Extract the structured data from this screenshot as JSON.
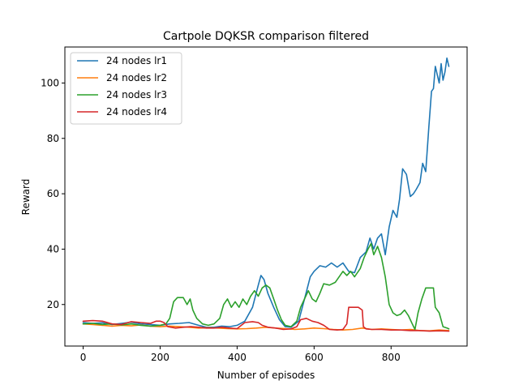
{
  "chart_data": {
    "type": "line",
    "title": "Cartpole DQKSR comparison filtered",
    "xlabel": "Number of episodes",
    "ylabel": "Reward",
    "xlim": [
      -47.5,
      997.5
    ],
    "ylim": [
      5,
      113
    ],
    "xticks": [
      0,
      200,
      400,
      600,
      800
    ],
    "yticks": [
      20,
      40,
      60,
      80,
      100
    ],
    "grid": false,
    "legend_position": "top-left",
    "series": [
      {
        "name": "24 nodes lr1",
        "color": "#1f77b4",
        "points": [
          [
            0,
            13.5
          ],
          [
            25,
            13.2
          ],
          [
            50,
            13.4
          ],
          [
            75,
            12.8
          ],
          [
            100,
            13.2
          ],
          [
            125,
            13.6
          ],
          [
            150,
            13.0
          ],
          [
            175,
            12.8
          ],
          [
            200,
            12.5
          ],
          [
            225,
            13.0
          ],
          [
            250,
            13.2
          ],
          [
            275,
            13.5
          ],
          [
            300,
            12.5
          ],
          [
            320,
            11.8
          ],
          [
            340,
            11.8
          ],
          [
            360,
            12.2
          ],
          [
            380,
            12.0
          ],
          [
            400,
            12.5
          ],
          [
            420,
            14.0
          ],
          [
            440,
            19.0
          ],
          [
            455,
            27.0
          ],
          [
            462,
            30.5
          ],
          [
            470,
            29.0
          ],
          [
            480,
            24.0
          ],
          [
            495,
            19.0
          ],
          [
            510,
            14.5
          ],
          [
            525,
            12.0
          ],
          [
            540,
            11.8
          ],
          [
            560,
            14.0
          ],
          [
            575,
            22.0
          ],
          [
            590,
            30.0
          ],
          [
            600,
            32.0
          ],
          [
            615,
            34.0
          ],
          [
            630,
            33.5
          ],
          [
            645,
            35.0
          ],
          [
            660,
            33.5
          ],
          [
            675,
            35.0
          ],
          [
            690,
            32.0
          ],
          [
            705,
            31.5
          ],
          [
            720,
            37.0
          ],
          [
            735,
            39.0
          ],
          [
            745,
            44.0
          ],
          [
            755,
            40.0
          ],
          [
            765,
            44.0
          ],
          [
            775,
            45.5
          ],
          [
            785,
            38.0
          ],
          [
            795,
            48.0
          ],
          [
            805,
            54.0
          ],
          [
            815,
            51.5
          ],
          [
            822,
            58.0
          ],
          [
            830,
            69.0
          ],
          [
            840,
            67.0
          ],
          [
            850,
            59.0
          ],
          [
            858,
            60.0
          ],
          [
            865,
            61.5
          ],
          [
            875,
            64.0
          ],
          [
            882,
            71.0
          ],
          [
            890,
            68.0
          ],
          [
            898,
            84.0
          ],
          [
            905,
            97.0
          ],
          [
            910,
            98.0
          ],
          [
            915,
            106.0
          ],
          [
            920,
            103.0
          ],
          [
            925,
            100.0
          ],
          [
            930,
            107.0
          ],
          [
            935,
            101.0
          ],
          [
            940,
            104.0
          ],
          [
            945,
            109.0
          ],
          [
            950,
            106.0
          ]
        ]
      },
      {
        "name": "24 nodes lr2",
        "color": "#ff7f0e",
        "points": [
          [
            0,
            13.0
          ],
          [
            25,
            12.8
          ],
          [
            50,
            12.5
          ],
          [
            75,
            12.2
          ],
          [
            100,
            12.5
          ],
          [
            125,
            12.3
          ],
          [
            150,
            12.6
          ],
          [
            175,
            12.2
          ],
          [
            200,
            12.0
          ],
          [
            225,
            12.2
          ],
          [
            250,
            12.0
          ],
          [
            275,
            11.8
          ],
          [
            300,
            11.5
          ],
          [
            325,
            11.6
          ],
          [
            350,
            11.5
          ],
          [
            375,
            11.3
          ],
          [
            400,
            11.2
          ],
          [
            425,
            11.3
          ],
          [
            450,
            11.5
          ],
          [
            475,
            11.8
          ],
          [
            500,
            11.5
          ],
          [
            525,
            11.3
          ],
          [
            550,
            11.0
          ],
          [
            575,
            11.2
          ],
          [
            600,
            11.5
          ],
          [
            625,
            11.3
          ],
          [
            650,
            11.0
          ],
          [
            675,
            10.8
          ],
          [
            700,
            11.0
          ],
          [
            725,
            11.5
          ],
          [
            750,
            11.0
          ],
          [
            775,
            11.2
          ],
          [
            800,
            11.0
          ],
          [
            825,
            10.8
          ],
          [
            850,
            11.0
          ],
          [
            875,
            10.6
          ],
          [
            900,
            10.5
          ],
          [
            925,
            10.8
          ],
          [
            950,
            10.6
          ]
        ]
      },
      {
        "name": "24 nodes lr3",
        "color": "#2ca02c",
        "points": [
          [
            0,
            13.0
          ],
          [
            25,
            13.2
          ],
          [
            50,
            12.8
          ],
          [
            75,
            13.0
          ],
          [
            100,
            12.6
          ],
          [
            125,
            13.0
          ],
          [
            150,
            12.5
          ],
          [
            175,
            12.2
          ],
          [
            200,
            12.5
          ],
          [
            215,
            13.0
          ],
          [
            225,
            15.0
          ],
          [
            235,
            21.0
          ],
          [
            245,
            22.5
          ],
          [
            260,
            22.5
          ],
          [
            270,
            20.0
          ],
          [
            278,
            22.0
          ],
          [
            285,
            18.0
          ],
          [
            295,
            15.0
          ],
          [
            310,
            13.0
          ],
          [
            325,
            12.5
          ],
          [
            340,
            13.0
          ],
          [
            355,
            15.0
          ],
          [
            365,
            20.0
          ],
          [
            375,
            22.0
          ],
          [
            385,
            19.0
          ],
          [
            395,
            21.0
          ],
          [
            405,
            19.0
          ],
          [
            415,
            22.0
          ],
          [
            425,
            20.0
          ],
          [
            435,
            23.0
          ],
          [
            445,
            25.0
          ],
          [
            455,
            23.0
          ],
          [
            465,
            26.0
          ],
          [
            475,
            27.0
          ],
          [
            485,
            26.0
          ],
          [
            495,
            22.0
          ],
          [
            505,
            18.0
          ],
          [
            515,
            14.5
          ],
          [
            525,
            12.5
          ],
          [
            540,
            12.0
          ],
          [
            555,
            14.0
          ],
          [
            565,
            19.0
          ],
          [
            575,
            22.0
          ],
          [
            585,
            25.0
          ],
          [
            595,
            22.0
          ],
          [
            605,
            21.0
          ],
          [
            615,
            24.0
          ],
          [
            625,
            27.5
          ],
          [
            640,
            27.0
          ],
          [
            655,
            28.0
          ],
          [
            665,
            30.0
          ],
          [
            675,
            32.0
          ],
          [
            685,
            30.5
          ],
          [
            695,
            32.0
          ],
          [
            705,
            30.0
          ],
          [
            720,
            33.0
          ],
          [
            730,
            37.0
          ],
          [
            740,
            40.0
          ],
          [
            748,
            42.0
          ],
          [
            755,
            38.0
          ],
          [
            765,
            41.0
          ],
          [
            775,
            37.0
          ],
          [
            785,
            30.0
          ],
          [
            795,
            20.0
          ],
          [
            805,
            17.0
          ],
          [
            815,
            16.0
          ],
          [
            825,
            16.5
          ],
          [
            835,
            18.0
          ],
          [
            845,
            16.0
          ],
          [
            855,
            13.0
          ],
          [
            862,
            11.0
          ],
          [
            870,
            17.0
          ],
          [
            880,
            22.0
          ],
          [
            890,
            26.0
          ],
          [
            900,
            26.0
          ],
          [
            910,
            26.0
          ],
          [
            915,
            19.0
          ],
          [
            925,
            17.0
          ],
          [
            935,
            12.0
          ],
          [
            945,
            11.5
          ],
          [
            950,
            11.2
          ]
        ]
      },
      {
        "name": "24 nodes lr4",
        "color": "#d62728",
        "points": [
          [
            0,
            14.0
          ],
          [
            25,
            14.2
          ],
          [
            50,
            14.0
          ],
          [
            75,
            13.0
          ],
          [
            100,
            12.8
          ],
          [
            125,
            13.8
          ],
          [
            150,
            13.5
          ],
          [
            175,
            13.2
          ],
          [
            190,
            14.0
          ],
          [
            200,
            14.0
          ],
          [
            210,
            13.5
          ],
          [
            220,
            12.0
          ],
          [
            240,
            11.5
          ],
          [
            260,
            11.8
          ],
          [
            280,
            12.0
          ],
          [
            300,
            11.8
          ],
          [
            320,
            11.5
          ],
          [
            340,
            11.5
          ],
          [
            360,
            11.8
          ],
          [
            380,
            11.5
          ],
          [
            400,
            11.3
          ],
          [
            420,
            13.5
          ],
          [
            440,
            13.8
          ],
          [
            455,
            13.5
          ],
          [
            465,
            12.5
          ],
          [
            480,
            11.8
          ],
          [
            500,
            11.5
          ],
          [
            520,
            11.0
          ],
          [
            540,
            11.2
          ],
          [
            555,
            12.0
          ],
          [
            565,
            14.5
          ],
          [
            580,
            15.0
          ],
          [
            595,
            14.0
          ],
          [
            610,
            13.5
          ],
          [
            625,
            12.5
          ],
          [
            640,
            11.0
          ],
          [
            660,
            10.8
          ],
          [
            675,
            11.0
          ],
          [
            685,
            13.0
          ],
          [
            690,
            19.0
          ],
          [
            700,
            19.0
          ],
          [
            715,
            19.0
          ],
          [
            725,
            18.0
          ],
          [
            728,
            12.0
          ],
          [
            735,
            11.2
          ],
          [
            750,
            11.0
          ],
          [
            775,
            11.0
          ],
          [
            800,
            10.8
          ],
          [
            825,
            10.8
          ],
          [
            850,
            10.6
          ],
          [
            875,
            10.6
          ],
          [
            900,
            10.4
          ],
          [
            925,
            10.5
          ],
          [
            950,
            10.4
          ]
        ]
      }
    ]
  }
}
